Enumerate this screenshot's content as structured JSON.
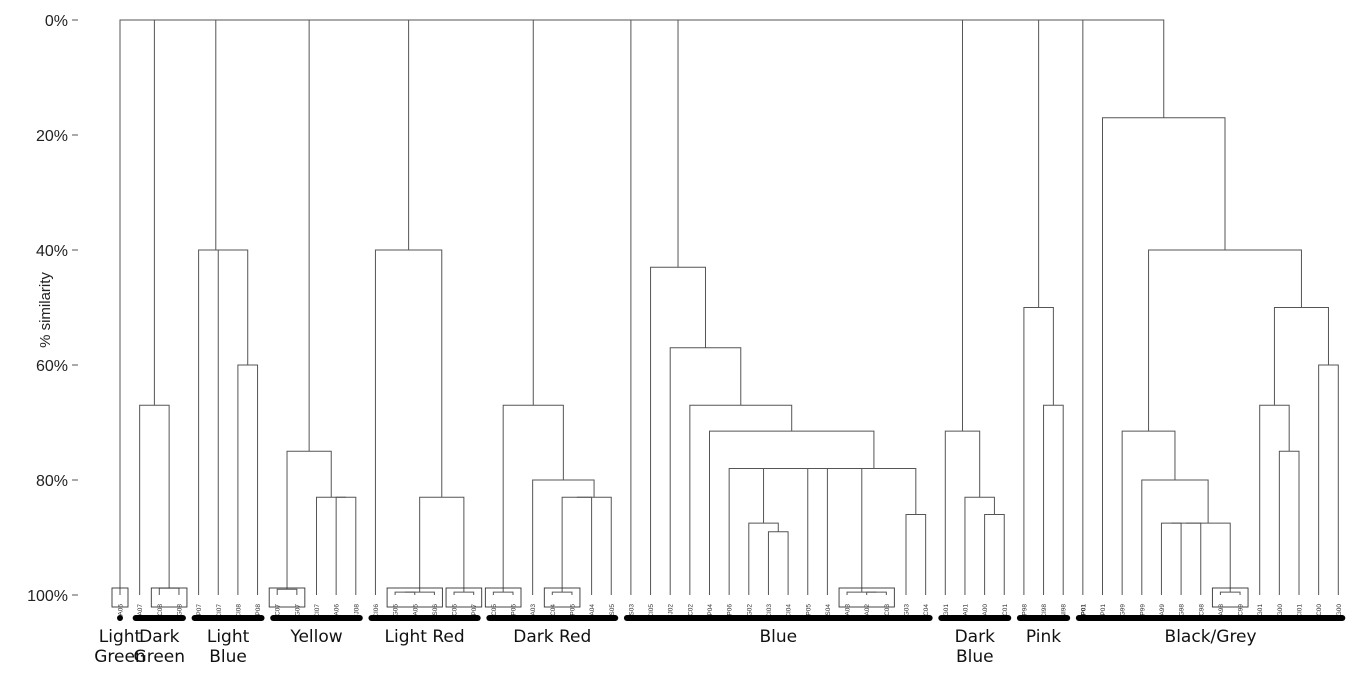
{
  "chart_data": {
    "type": "dendrogram",
    "ylabel": "% similarity",
    "yticks": [
      "0%",
      "20%",
      "40%",
      "60%",
      "80%",
      "100%"
    ],
    "ylim": [
      0,
      100
    ],
    "leaves": [
      "EA06",
      "EA07",
      "NC08",
      "TG08",
      "FP07",
      "CI07",
      "CI08",
      "FP08",
      "NC07",
      "TG07",
      "CI07",
      "EA06",
      "FJ08",
      "CI06",
      "TG06",
      "EA05",
      "AS06",
      "NC06",
      "FP07",
      "NC05",
      "FP06",
      "EA03",
      "NC04",
      "FP05",
      "EA04",
      "AS05",
      "AS03",
      "CI05",
      "FJ02",
      "NC02",
      "FP04",
      "FP06",
      "TG02",
      "CI03",
      "CI04",
      "FP05",
      "AS04",
      "VA03",
      "EA02",
      "NC03",
      "TG03",
      "NC04",
      "TG01",
      "EA01",
      "EA00",
      "NC01",
      "FP98",
      "CI98",
      "NI98",
      "FP01",
      "FP01",
      "TG99",
      "FP99",
      "EA99",
      "TG98",
      "NC98",
      "EA98",
      "NC99",
      "TG01",
      "TG00",
      "CI01",
      "NC00",
      "TG00"
    ],
    "boxed_leaves": [
      [
        "NC08",
        "TG08"
      ],
      [
        "NC07",
        "TG07"
      ],
      [
        "EA06",
        "FJ08"
      ],
      [
        "TG06",
        "EA05",
        "AS06"
      ],
      [
        "NC06",
        "FP07"
      ],
      [
        "NC05",
        "FP06"
      ],
      [
        "NC04",
        "FP05"
      ],
      [
        "VA03",
        "EA02",
        "NC03"
      ],
      [
        "EA98",
        "NC99"
      ]
    ],
    "clusters": [
      {
        "name": "Light Green",
        "leaves": [
          0,
          0
        ]
      },
      {
        "name": "Dark Green",
        "leaves": [
          1,
          3
        ]
      },
      {
        "name": "Light Blue",
        "leaves": [
          4,
          7
        ]
      },
      {
        "name": "Yellow",
        "leaves": [
          8,
          12
        ]
      },
      {
        "name": "Light Red",
        "leaves": [
          13,
          18
        ]
      },
      {
        "name": "Dark Red",
        "leaves": [
          19,
          25
        ]
      },
      {
        "name": "Blue",
        "leaves": [
          26,
          41
        ]
      },
      {
        "name": "Dark Blue",
        "leaves": [
          42,
          45
        ]
      },
      {
        "name": "Pink",
        "leaves": [
          46,
          48
        ]
      },
      {
        "name": "Black/Grey",
        "leaves": [
          49,
          62
        ]
      }
    ],
    "merges": [
      {
        "l": 2,
        "r": 3,
        "h": 98.8
      },
      {
        "l": 1,
        "r": "m0",
        "h": 67
      },
      {
        "l": 6,
        "r": 7,
        "h": 60
      },
      {
        "l": 5,
        "r": "m2",
        "h": 40
      },
      {
        "l": 4,
        "r": "m3",
        "h": 40
      },
      {
        "l": 11,
        "r": 12,
        "h": 83
      },
      {
        "l": 10,
        "r": "m5",
        "h": 83
      },
      {
        "l": 8,
        "r": 9,
        "h": 99
      },
      {
        "l": "m7",
        "r": "m6",
        "h": 75
      },
      {
        "l": 14,
        "r": 15,
        "h": 99.5
      },
      {
        "l": "m9",
        "r": 16,
        "h": 99.5
      },
      {
        "l": 17,
        "r": 18,
        "h": 99.5
      },
      {
        "l": "m10",
        "r": "m11",
        "h": 83
      },
      {
        "l": 13,
        "r": "m12",
        "h": 40
      },
      {
        "l": 22,
        "r": 23,
        "h": 99.5
      },
      {
        "l": "m14",
        "r": 24,
        "h": 83
      },
      {
        "l": "m15",
        "r": 25,
        "h": 83
      },
      {
        "l": 21,
        "r": "m16",
        "h": 80
      },
      {
        "l": 19,
        "r": 20,
        "h": 99.5
      },
      {
        "l": "m18",
        "r": "m17",
        "h": 67
      },
      {
        "l": 33,
        "r": 34,
        "h": 89
      },
      {
        "l": 32,
        "r": "m20",
        "h": 87.5
      },
      {
        "l": 38,
        "r": 39,
        "h": 99.5
      },
      {
        "l": 37,
        "r": "m22",
        "h": 99.5
      },
      {
        "l": 40,
        "r": 41,
        "h": 86
      },
      {
        "l": 31,
        "r": "m21",
        "h": 78
      },
      {
        "l": "m25",
        "r": 35,
        "h": 78
      },
      {
        "l": "m26",
        "r": 36,
        "h": 78
      },
      {
        "l": "m27",
        "r": "m23",
        "h": 78
      },
      {
        "l": "m28",
        "r": "m24",
        "h": 78
      },
      {
        "l": 30,
        "r": "m29",
        "h": 71.5
      },
      {
        "l": 29,
        "r": "m30",
        "h": 67
      },
      {
        "l": 28,
        "r": "m31",
        "h": 57
      },
      {
        "l": 27,
        "r": "m32",
        "h": 43
      },
      {
        "l": 26,
        "r": "m33",
        "h": 0
      },
      {
        "l": 44,
        "r": 45,
        "h": 86
      },
      {
        "l": 43,
        "r": "m35",
        "h": 83
      },
      {
        "l": 42,
        "r": "m36",
        "h": 71.5
      },
      {
        "l": 47,
        "r": 48,
        "h": 67
      },
      {
        "l": 46,
        "r": "m38",
        "h": 50
      },
      {
        "l": 56,
        "r": 57,
        "h": 99.5
      },
      {
        "l": 53,
        "r": 54,
        "h": 87.5
      },
      {
        "l": "m41",
        "r": 55,
        "h": 87.5
      },
      {
        "l": "m42",
        "r": "m40",
        "h": 87.5
      },
      {
        "l": 52,
        "r": "m43",
        "h": 80
      },
      {
        "l": 51,
        "r": "m44",
        "h": 71.5
      },
      {
        "l": 59,
        "r": 60,
        "h": 75
      },
      {
        "l": 58,
        "r": "m46",
        "h": 67
      },
      {
        "l": 61,
        "r": 62,
        "h": 60
      },
      {
        "l": "m47",
        "r": "m48",
        "h": 50
      },
      {
        "l": "m45",
        "r": "m49",
        "h": 40
      },
      {
        "l": 50,
        "r": "m50",
        "h": 17
      },
      {
        "l": 49,
        "r": "m51",
        "h": 0
      },
      {
        "l": "m39",
        "r": "m52",
        "h": 0
      },
      {
        "l": "m37",
        "r": "m53",
        "h": 0
      },
      {
        "l": "m34",
        "r": "m54",
        "h": 0
      },
      {
        "l": "m19",
        "r": "m55",
        "h": 0
      },
      {
        "l": "m13",
        "r": "m56",
        "h": 0
      },
      {
        "l": "m8",
        "r": "m57",
        "h": 0
      },
      {
        "l": "m4",
        "r": "m58",
        "h": 0
      },
      {
        "l": "m1",
        "r": "m59",
        "h": 0
      },
      {
        "l": 0,
        "r": "m60",
        "h": 0
      }
    ]
  }
}
